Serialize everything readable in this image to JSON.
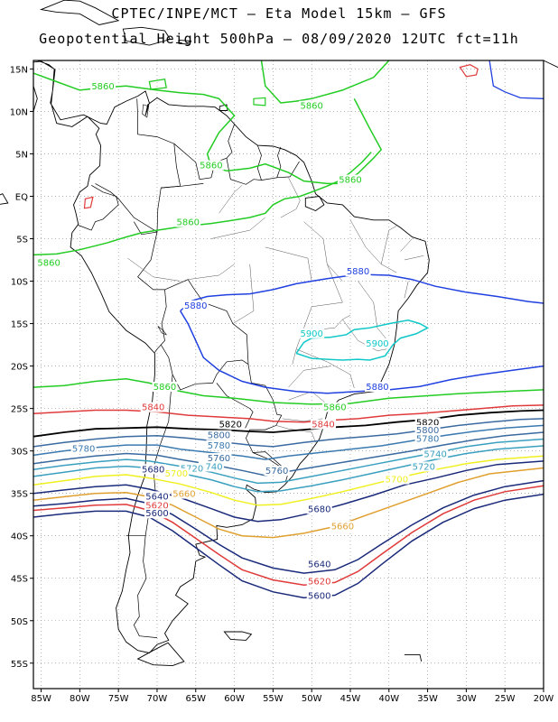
{
  "header": {
    "line1": "CPTEC/INPE/MCT  –  Eta Model 15km – GFS",
    "line2": "Geopotential Height 500hPa – 08/09/2020 12UTC fct=11h"
  },
  "axes": {
    "lat_labels": [
      "15N",
      "10N",
      "5N",
      "EQ",
      "5S",
      "10S",
      "15S",
      "20S",
      "25S",
      "30S",
      "35S",
      "40S",
      "45S",
      "50S",
      "55S"
    ],
    "lat_values": [
      15,
      10,
      5,
      0,
      -5,
      -10,
      -15,
      -20,
      -25,
      -30,
      -35,
      -40,
      -45,
      -50,
      -55
    ],
    "lon_labels": [
      "85W",
      "80W",
      "75W",
      "70W",
      "65W",
      "60W",
      "55W",
      "50W",
      "45W",
      "40W",
      "35W",
      "30W",
      "25W",
      "20W"
    ],
    "lon_values": [
      -85,
      -80,
      -75,
      -70,
      -65,
      -60,
      -55,
      -50,
      -45,
      -40,
      -35,
      -30,
      -25,
      -20
    ],
    "lon_range": [
      -86,
      -20
    ],
    "lat_range": [
      -58,
      16
    ],
    "grid": "dotted"
  },
  "colors": {
    "c5600": "#1a2a7a",
    "c5620": "#e03a3a",
    "c5640": "#1a2a7a",
    "c5660": "#e0a030",
    "c5680": "#1a2a7a",
    "c5700": "#f0f020",
    "c5720": "#3aa0c0",
    "c5740": "#3aa0c0",
    "c5760": "#3a6aa0",
    "c5780": "#3a7ab0",
    "c5800": "#3a6aa0",
    "c5820": "#000000",
    "c5840": "#e03a3a",
    "c5860": "#22cc22",
    "c5880": "#2040e0",
    "c5900": "#10c8c8"
  },
  "contour_labels": [
    {
      "text": "5860",
      "lon": -77,
      "lat": 12.8,
      "color": "#22cc22"
    },
    {
      "text": "5860",
      "lon": -50,
      "lat": 10.5,
      "color": "#22cc22"
    },
    {
      "text": "5860",
      "lon": -63,
      "lat": 3.5,
      "color": "#22cc22"
    },
    {
      "text": "5860",
      "lon": -45,
      "lat": 1.8,
      "color": "#22cc22"
    },
    {
      "text": "5860",
      "lon": -66,
      "lat": -3.2,
      "color": "#22cc22"
    },
    {
      "text": "5860",
      "lon": -84,
      "lat": -8,
      "color": "#22cc22"
    },
    {
      "text": "5880",
      "lon": -44,
      "lat": -9,
      "color": "#2040e0"
    },
    {
      "text": "5880",
      "lon": -65,
      "lat": -13,
      "color": "#2040e0"
    },
    {
      "text": "5900",
      "lon": -50,
      "lat": -16.3,
      "color": "#10c8c8"
    },
    {
      "text": "5900",
      "lon": -41.5,
      "lat": -17.5,
      "color": "#10c8c8"
    },
    {
      "text": "5880",
      "lon": -41.5,
      "lat": -22.6,
      "color": "#2040e0"
    },
    {
      "text": "5860",
      "lon": -69,
      "lat": -22.6,
      "color": "#22cc22"
    },
    {
      "text": "5860",
      "lon": -47,
      "lat": -25,
      "color": "#22cc22"
    },
    {
      "text": "5840",
      "lon": -70.5,
      "lat": -25,
      "color": "#e03a3a"
    },
    {
      "text": "5840",
      "lon": -48.5,
      "lat": -27,
      "color": "#e03a3a"
    },
    {
      "text": "5820",
      "lon": -60.5,
      "lat": -27,
      "color": "#000000"
    },
    {
      "text": "5820",
      "lon": -35,
      "lat": -26.8,
      "color": "#000000"
    },
    {
      "text": "5800",
      "lon": -35,
      "lat": -27.7,
      "color": "#3a6aa0"
    },
    {
      "text": "5800",
      "lon": -62,
      "lat": -28.3,
      "color": "#3a6aa0"
    },
    {
      "text": "5780",
      "lon": -35,
      "lat": -28.7,
      "color": "#3a7ab0"
    },
    {
      "text": "5780",
      "lon": -62,
      "lat": -29.5,
      "color": "#3a7ab0"
    },
    {
      "text": "5780",
      "lon": -79.5,
      "lat": -29.9,
      "color": "#3a7ab0"
    },
    {
      "text": "5760",
      "lon": -62,
      "lat": -31,
      "color": "#3a6aa0"
    },
    {
      "text": "5760",
      "lon": -54.5,
      "lat": -32.5,
      "color": "#3a6aa0"
    },
    {
      "text": "5740",
      "lon": -34,
      "lat": -30.5,
      "color": "#3aa0c0"
    },
    {
      "text": "5740",
      "lon": -63,
      "lat": -32,
      "color": "#3aa0c0"
    },
    {
      "text": "5720",
      "lon": -35.5,
      "lat": -32,
      "color": "#3aa0c0"
    },
    {
      "text": "5720",
      "lon": -65.5,
      "lat": -32.2,
      "color": "#3aa0c0"
    },
    {
      "text": "5700",
      "lon": -39,
      "lat": -33.5,
      "color": "#f0f020"
    },
    {
      "text": "5700",
      "lon": -67.5,
      "lat": -32.8,
      "color": "#f0f020"
    },
    {
      "text": "5680",
      "lon": -70.5,
      "lat": -32.3,
      "color": "#1a2a7a"
    },
    {
      "text": "5680",
      "lon": -49,
      "lat": -37,
      "color": "#1a2a7a"
    },
    {
      "text": "5660",
      "lon": -66.5,
      "lat": -35.2,
      "color": "#e0a030"
    },
    {
      "text": "5660",
      "lon": -46,
      "lat": -39,
      "color": "#e0a030"
    },
    {
      "text": "5640",
      "lon": -70,
      "lat": -35.5,
      "color": "#1a2a7a"
    },
    {
      "text": "5640",
      "lon": -49,
      "lat": -43.5,
      "color": "#1a2a7a"
    },
    {
      "text": "5620",
      "lon": -70,
      "lat": -36.6,
      "color": "#e03a3a"
    },
    {
      "text": "5620",
      "lon": -49,
      "lat": -45.5,
      "color": "#e03a3a"
    },
    {
      "text": "5600",
      "lon": -70,
      "lat": -37.5,
      "color": "#1a2a7a"
    },
    {
      "text": "5600",
      "lon": -49,
      "lat": -47.2,
      "color": "#1a2a7a"
    }
  ]
}
